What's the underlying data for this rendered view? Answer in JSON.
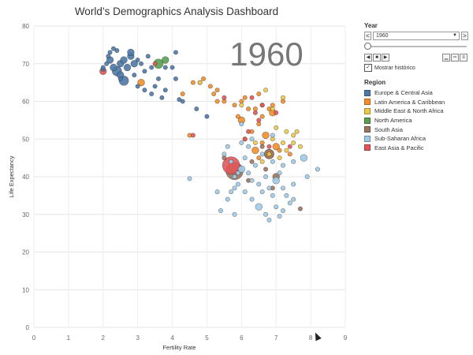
{
  "title": "World’s Demographics Analysis Dashboard",
  "year_display": "1960",
  "controls": {
    "year_header": "Year",
    "year_value": "1960",
    "prev_label": "<",
    "next_label": ">",
    "history_label": "Mostrar histórico",
    "history_checked": true
  },
  "legend": {
    "header": "Region",
    "items": [
      {
        "label": "Europe & Central Asia",
        "color": "#4e79a7"
      },
      {
        "label": "Latin America & Caribbean",
        "color": "#f28e2b"
      },
      {
        "label": "Middle East & North Africa",
        "color": "#edc948"
      },
      {
        "label": "North America",
        "color": "#59a14f"
      },
      {
        "label": "South Asia",
        "color": "#9c755f"
      },
      {
        "label": "Sub-Saharan Africa",
        "color": "#a0cbe8"
      },
      {
        "label": "East Asia & Pacific",
        "color": "#e15759"
      }
    ]
  },
  "chart_data": {
    "type": "scatter",
    "title": "World’s Demographics Analysis Dashboard",
    "xlabel": "Fertility Rate",
    "ylabel": "Life Expectancy",
    "xlim": [
      0,
      9
    ],
    "ylim": [
      0,
      80
    ],
    "xticks": [
      0,
      1,
      2,
      3,
      4,
      5,
      6,
      7,
      8,
      9
    ],
    "yticks": [
      0,
      10,
      20,
      30,
      40,
      50,
      60,
      70,
      80
    ],
    "grid": true,
    "series": [
      {
        "name": "Europe & Central Asia",
        "color": "#4e79a7",
        "points": [
          [
            2.0,
            68.5,
            1
          ],
          [
            2.1,
            70,
            1
          ],
          [
            2.15,
            72,
            1
          ],
          [
            2.2,
            71,
            2
          ],
          [
            2.3,
            69,
            2
          ],
          [
            2.4,
            68,
            3
          ],
          [
            2.5,
            67,
            2
          ],
          [
            2.5,
            70,
            2
          ],
          [
            2.6,
            71,
            2
          ],
          [
            2.7,
            69,
            2
          ],
          [
            2.8,
            72,
            2
          ],
          [
            2.9,
            70,
            2
          ],
          [
            3.0,
            71,
            1
          ],
          [
            3.1,
            70,
            1
          ],
          [
            2.2,
            73,
            1
          ],
          [
            2.4,
            73.5,
            1
          ],
          [
            2.5,
            66,
            1
          ],
          [
            2.6,
            65.5,
            3
          ],
          [
            2.9,
            67,
            1
          ],
          [
            3.2,
            68,
            1
          ],
          [
            3.3,
            72,
            1
          ],
          [
            3.4,
            69,
            1
          ],
          [
            3.6,
            66,
            1
          ],
          [
            3.8,
            69,
            1
          ],
          [
            4.1,
            73,
            1
          ],
          [
            4.0,
            69,
            1
          ],
          [
            3.0,
            64,
            1
          ],
          [
            3.2,
            63,
            1
          ],
          [
            3.4,
            62,
            1
          ],
          [
            3.7,
            61,
            1
          ],
          [
            3.8,
            63,
            1
          ],
          [
            4.1,
            66,
            1
          ],
          [
            4.3,
            60,
            1
          ],
          [
            5.0,
            56,
            1
          ],
          [
            2.0,
            69,
            1
          ],
          [
            2.3,
            74,
            1
          ],
          [
            2.8,
            73,
            2
          ],
          [
            3.5,
            64,
            1
          ],
          [
            4.2,
            60.5,
            1
          ],
          [
            4.7,
            58,
            1
          ]
        ]
      },
      {
        "name": "Latin America & Caribbean",
        "color": "#f28e2b",
        "points": [
          [
            3.1,
            65,
            2
          ],
          [
            4.6,
            65,
            1
          ],
          [
            4.9,
            66,
            1
          ],
          [
            5.1,
            64,
            1
          ],
          [
            5.3,
            63,
            1
          ],
          [
            5.5,
            60,
            1
          ],
          [
            5.8,
            59,
            1
          ],
          [
            6.0,
            60,
            1
          ],
          [
            6.2,
            58,
            1
          ],
          [
            6.4,
            58,
            1
          ],
          [
            6.6,
            59,
            1
          ],
          [
            6.8,
            58,
            1
          ],
          [
            6.9,
            57,
            2
          ],
          [
            7.2,
            60,
            1
          ],
          [
            6.5,
            54,
            1
          ],
          [
            6.3,
            52,
            1
          ],
          [
            6.7,
            51,
            2
          ],
          [
            5.2,
            62,
            1
          ],
          [
            4.8,
            65,
            1
          ],
          [
            6.1,
            61,
            1
          ],
          [
            5.9,
            56,
            1
          ],
          [
            6.0,
            55,
            2
          ],
          [
            6.1,
            50,
            1
          ],
          [
            6.6,
            49,
            1
          ],
          [
            7.0,
            48,
            2
          ],
          [
            7.1,
            47,
            1
          ],
          [
            6.8,
            46,
            3
          ],
          [
            6.5,
            45,
            1
          ],
          [
            4.5,
            51,
            1
          ],
          [
            6.9,
            59,
            1
          ],
          [
            6.6,
            56,
            1
          ],
          [
            5.3,
            60,
            1
          ],
          [
            6.4,
            47,
            2
          ],
          [
            7.4,
            46,
            1
          ],
          [
            6.5,
            62,
            1
          ],
          [
            4.3,
            62,
            1
          ]
        ]
      },
      {
        "name": "Middle East & North Africa",
        "color": "#edc948",
        "points": [
          [
            4.8,
            65,
            1
          ],
          [
            6.7,
            63,
            1
          ],
          [
            7.2,
            61,
            1
          ],
          [
            7.0,
            53,
            1
          ],
          [
            7.3,
            52,
            1
          ],
          [
            7.5,
            51,
            1
          ],
          [
            7.6,
            52,
            1
          ],
          [
            6.9,
            50,
            1
          ],
          [
            6.4,
            49,
            1
          ],
          [
            7.2,
            49,
            1
          ],
          [
            7.5,
            49,
            1
          ],
          [
            7.7,
            48,
            1
          ],
          [
            6.8,
            46,
            1
          ],
          [
            7.1,
            45,
            1
          ],
          [
            6.6,
            44,
            1
          ],
          [
            7.3,
            47,
            1
          ],
          [
            6.0,
            59,
            1
          ],
          [
            6.9,
            58,
            1
          ]
        ]
      },
      {
        "name": "North America",
        "color": "#59a14f",
        "points": [
          [
            3.6,
            70,
            3
          ],
          [
            3.8,
            71,
            2
          ]
        ]
      },
      {
        "name": "South Asia",
        "color": "#9c755f",
        "points": [
          [
            5.8,
            41.5,
            6
          ],
          [
            6.8,
            46,
            3
          ],
          [
            7.0,
            40,
            2
          ],
          [
            6.3,
            44,
            1
          ],
          [
            6.7,
            42,
            1
          ],
          [
            7.7,
            31.5,
            1
          ],
          [
            6.9,
            37,
            1
          ],
          [
            6.6,
            48,
            1
          ],
          [
            5.5,
            45,
            1
          ],
          [
            6.2,
            39,
            1
          ]
        ]
      },
      {
        "name": "Sub-Saharan Africa",
        "color": "#a0cbe8",
        "points": [
          [
            4.5,
            39.5,
            1
          ],
          [
            5.5,
            46,
            1
          ],
          [
            5.6,
            48,
            1
          ],
          [
            5.7,
            44,
            1
          ],
          [
            5.8,
            40,
            1
          ],
          [
            5.9,
            38,
            1
          ],
          [
            6.0,
            42,
            2
          ],
          [
            6.1,
            45,
            1
          ],
          [
            6.2,
            41,
            1
          ],
          [
            6.3,
            39,
            1
          ],
          [
            6.4,
            43,
            1
          ],
          [
            6.5,
            38,
            1
          ],
          [
            6.6,
            36,
            1
          ],
          [
            6.7,
            40,
            1
          ],
          [
            6.8,
            37,
            1
          ],
          [
            6.9,
            35,
            1
          ],
          [
            7.0,
            39,
            2
          ],
          [
            7.1,
            41,
            1
          ],
          [
            7.2,
            37,
            1
          ],
          [
            7.3,
            35,
            1
          ],
          [
            7.4,
            33,
            1
          ],
          [
            7.5,
            34,
            1
          ],
          [
            6.1,
            36,
            1
          ],
          [
            6.3,
            34,
            1
          ],
          [
            6.5,
            32,
            2
          ],
          [
            6.7,
            30,
            1
          ],
          [
            6.8,
            28.5,
            1
          ],
          [
            7.0,
            32,
            1
          ],
          [
            7.1,
            29.5,
            1
          ],
          [
            5.3,
            36,
            1
          ],
          [
            5.6,
            34,
            1
          ],
          [
            5.4,
            31,
            1
          ],
          [
            5.8,
            37,
            1
          ],
          [
            7.5,
            38,
            1
          ],
          [
            7.8,
            45,
            2
          ],
          [
            8.2,
            42,
            1
          ],
          [
            7.9,
            40,
            1
          ],
          [
            6.0,
            49,
            1
          ],
          [
            6.3,
            50,
            1
          ],
          [
            6.9,
            44,
            1
          ],
          [
            7.2,
            43,
            1
          ],
          [
            5.9,
            41,
            1
          ],
          [
            6.2,
            48,
            1
          ],
          [
            6.6,
            46,
            1
          ],
          [
            7.5,
            44,
            1
          ],
          [
            5.8,
            30,
            1
          ],
          [
            7.2,
            31,
            1
          ],
          [
            6.9,
            51,
            1
          ],
          [
            6.0,
            54,
            1
          ],
          [
            5.7,
            36,
            1
          ]
        ]
      },
      {
        "name": "East Asia & Pacific",
        "color": "#e15759",
        "points": [
          [
            2.0,
            68,
            2
          ],
          [
            3.5,
            70,
            1
          ],
          [
            4.6,
            51,
            1
          ],
          [
            5.7,
            43,
            6
          ],
          [
            6.6,
            59,
            1
          ],
          [
            6.2,
            52,
            1
          ],
          [
            6.4,
            57,
            1
          ],
          [
            6.8,
            48,
            1
          ],
          [
            7.4,
            48,
            1
          ],
          [
            5.5,
            61,
            1
          ],
          [
            6.1,
            50,
            1
          ],
          [
            6.5,
            55,
            1
          ],
          [
            7.0,
            57,
            1
          ],
          [
            6.3,
            61,
            1
          ]
        ]
      }
    ]
  }
}
